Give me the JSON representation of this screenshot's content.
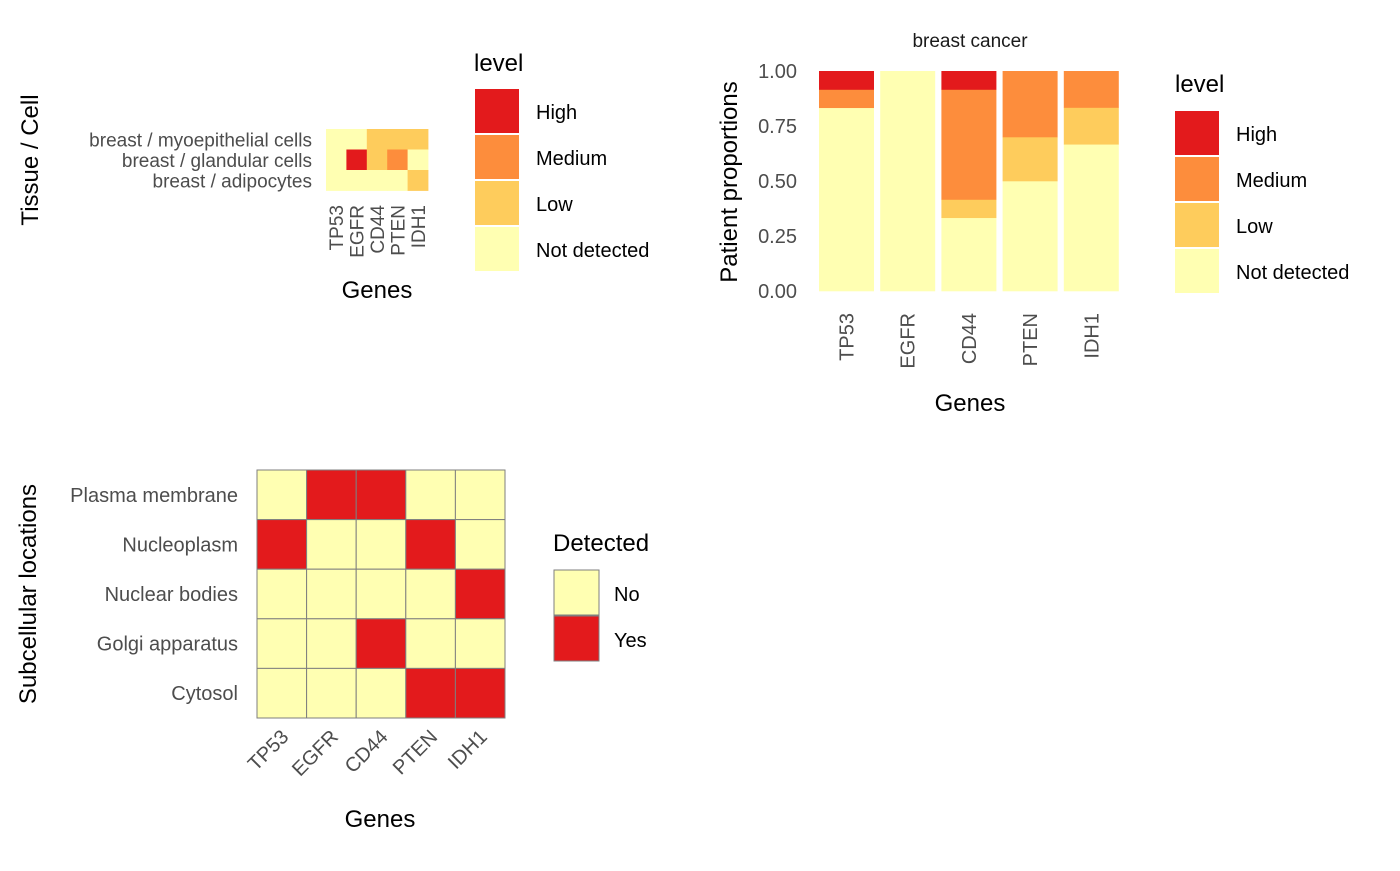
{
  "colors": {
    "High": "#E31A1C",
    "Medium": "#FD8D3C",
    "Low": "#FECC5C",
    "Not detected": "#FFFFB2",
    "Yes": "#E31A1C",
    "No": "#FFFFB2",
    "grid_border": "#7f7f7f"
  },
  "chart_data": [
    {
      "type": "heatmap",
      "xlabel": "Genes",
      "ylabel": "Tissue / Cell",
      "x": [
        "TP53",
        "EGFR",
        "CD44",
        "PTEN",
        "IDH1"
      ],
      "y": [
        "breast / myoepithelial cells",
        "breast / glandular cells",
        "breast / adipocytes"
      ],
      "values": [
        [
          "Not detected",
          "Not detected",
          "Low",
          "Low",
          "Low"
        ],
        [
          "Not detected",
          "High",
          "Low",
          "Medium",
          "Not detected"
        ],
        [
          "Not detected",
          "Not detected",
          "Not detected",
          "Not detected",
          "Low"
        ]
      ],
      "legend": {
        "title": "level",
        "entries": [
          "High",
          "Medium",
          "Low",
          "Not detected"
        ]
      }
    },
    {
      "type": "bar",
      "stacked": true,
      "title": "breast cancer",
      "xlabel": "Genes",
      "ylabel": "Patient proportions",
      "categories": [
        "TP53",
        "EGFR",
        "CD44",
        "PTEN",
        "IDH1"
      ],
      "ylim": [
        0,
        1
      ],
      "yticks": [
        "0.00",
        "0.25",
        "0.50",
        "0.75",
        "1.00"
      ],
      "series": [
        {
          "name": "Not detected",
          "values": [
            0.833,
            1.0,
            0.333,
            0.5,
            0.667
          ]
        },
        {
          "name": "Low",
          "values": [
            0.0,
            0.0,
            0.083,
            0.2,
            0.167
          ]
        },
        {
          "name": "Medium",
          "values": [
            0.083,
            0.0,
            0.5,
            0.3,
            0.166
          ]
        },
        {
          "name": "High",
          "values": [
            0.084,
            0.0,
            0.084,
            0.0,
            0.0
          ]
        }
      ],
      "legend": {
        "title": "level",
        "entries": [
          "High",
          "Medium",
          "Low",
          "Not detected"
        ]
      }
    },
    {
      "type": "heatmap",
      "xlabel": "Genes",
      "ylabel": "Subcellular locations",
      "x": [
        "TP53",
        "EGFR",
        "CD44",
        "PTEN",
        "IDH1"
      ],
      "y": [
        "Plasma membrane",
        "Nucleoplasm",
        "Nuclear bodies",
        "Golgi apparatus",
        "Cytosol"
      ],
      "values": [
        [
          "No",
          "Yes",
          "Yes",
          "No",
          "No"
        ],
        [
          "Yes",
          "No",
          "No",
          "Yes",
          "No"
        ],
        [
          "No",
          "No",
          "No",
          "No",
          "Yes"
        ],
        [
          "No",
          "No",
          "Yes",
          "No",
          "No"
        ],
        [
          "No",
          "No",
          "No",
          "Yes",
          "Yes"
        ]
      ],
      "legend": {
        "title": "Detected",
        "entries": [
          "No",
          "Yes"
        ]
      }
    }
  ]
}
